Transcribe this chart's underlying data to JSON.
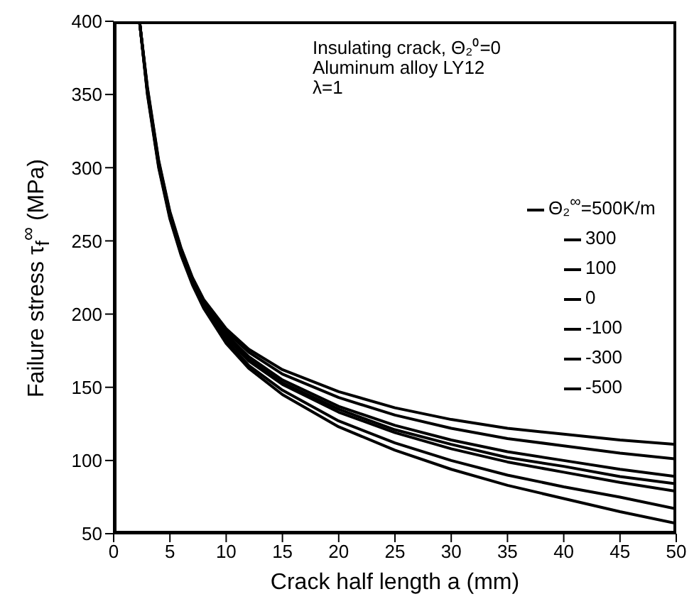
{
  "chart_data": {
    "type": "line",
    "xlabel": "Crack half length a (mm)",
    "ylabel": "Failure stress τ$_{f}$$^{∞}$ (MPa)",
    "annotations": [
      "Insulating crack, Θ₂⁰=0",
      "Aluminum alloy LY12",
      "λ=1"
    ],
    "xlim": [
      0,
      50
    ],
    "xticks": [
      0,
      5,
      10,
      15,
      20,
      25,
      30,
      35,
      40,
      45,
      50
    ],
    "ylim": [
      50,
      400
    ],
    "yticks": [
      50,
      100,
      150,
      200,
      250,
      300,
      350,
      400
    ],
    "grid": false,
    "legend": "right",
    "marker": "none",
    "line_style": "solid",
    "series": [
      {
        "name": "Θ₂$^{∞}$=500K/m",
        "color": "#000000",
        "x": [
          2.3,
          3,
          4,
          5,
          6,
          7,
          8,
          10,
          12,
          15,
          20,
          25,
          30,
          35,
          40,
          45,
          50
        ],
        "values": [
          400,
          355,
          305,
          270,
          245,
          225,
          210,
          190,
          176,
          162,
          147,
          136,
          128,
          122,
          118,
          114,
          111
        ]
      },
      {
        "name": "300",
        "color": "#000000",
        "x": [
          2.3,
          3,
          4,
          5,
          6,
          7,
          8,
          10,
          12,
          15,
          20,
          25,
          30,
          35,
          40,
          45,
          50
        ],
        "values": [
          400,
          354,
          304,
          269,
          244,
          224,
          209,
          188,
          174,
          159,
          143,
          131,
          122,
          115,
          110,
          105,
          101
        ]
      },
      {
        "name": "100",
        "color": "#000000",
        "x": [
          2.3,
          3,
          4,
          5,
          6,
          7,
          8,
          10,
          12,
          15,
          20,
          25,
          30,
          35,
          40,
          45,
          50
        ],
        "values": [
          400,
          353,
          303,
          268,
          243,
          223,
          208,
          186,
          171,
          155,
          137,
          124,
          114,
          106,
          100,
          94,
          89
        ]
      },
      {
        "name": "0",
        "color": "#000000",
        "x": [
          2.3,
          3,
          4,
          5,
          6,
          7,
          8,
          10,
          12,
          15,
          20,
          25,
          30,
          35,
          40,
          45,
          50
        ],
        "values": [
          400,
          352,
          302,
          267,
          242,
          222,
          207,
          185,
          169,
          153,
          135,
          121,
          111,
          102,
          96,
          89,
          84
        ]
      },
      {
        "name": "-100",
        "color": "#000000",
        "x": [
          2.3,
          3,
          4,
          5,
          6,
          7,
          8,
          10,
          12,
          15,
          20,
          25,
          30,
          35,
          40,
          45,
          50
        ],
        "values": [
          400,
          352,
          302,
          267,
          242,
          222,
          206,
          184,
          168,
          152,
          133,
          119,
          108,
          99,
          92,
          85,
          79
        ]
      },
      {
        "name": "-300",
        "color": "#000000",
        "x": [
          2.3,
          3,
          4,
          5,
          6,
          7,
          8,
          10,
          12,
          15,
          20,
          25,
          30,
          35,
          40,
          45,
          50
        ],
        "values": [
          400,
          351,
          301,
          266,
          241,
          221,
          205,
          182,
          165,
          148,
          127,
          112,
          100,
          90,
          82,
          75,
          67
        ]
      },
      {
        "name": "-500",
        "color": "#000000",
        "x": [
          2.3,
          3,
          4,
          5,
          6,
          7,
          8,
          10,
          12,
          15,
          20,
          25,
          30,
          35,
          40,
          45,
          50
        ],
        "values": [
          400,
          350,
          300,
          265,
          240,
          220,
          204,
          180,
          163,
          145,
          123,
          107,
          94,
          83,
          74,
          65,
          57
        ]
      }
    ]
  }
}
